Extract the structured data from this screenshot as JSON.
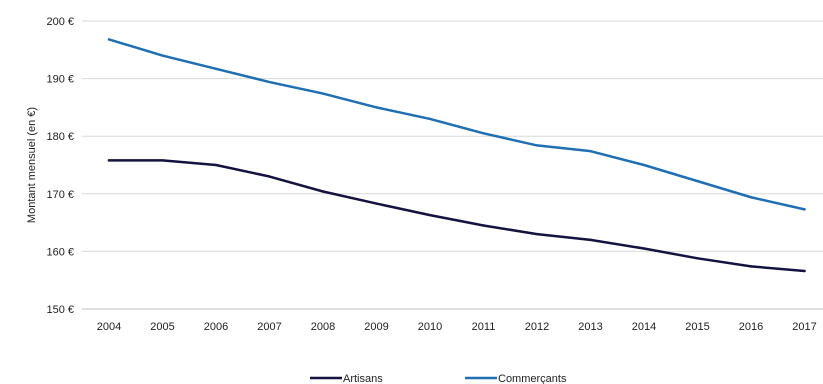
{
  "chart_data": {
    "type": "line",
    "x": [
      "2004",
      "2005",
      "2006",
      "2007",
      "2008",
      "2009",
      "2010",
      "2011",
      "2012",
      "2013",
      "2014",
      "2015",
      "2016",
      "2017"
    ],
    "ylabel": "Montant mensuel (en €)",
    "ylim": [
      150,
      200
    ],
    "yticks": [
      150,
      160,
      170,
      180,
      190,
      200
    ],
    "ytick_labels": [
      "150 €",
      "160 €",
      "170 €",
      "180 €",
      "190 €",
      "200 €"
    ],
    "grid": true,
    "legend_position": "bottom",
    "series": [
      {
        "name": "Artisans",
        "color": "#14123f",
        "values": [
          175.8,
          175.8,
          175.0,
          173.0,
          170.4,
          168.3,
          166.3,
          164.5,
          163.0,
          162.0,
          160.5,
          158.8,
          157.4,
          156.6
        ]
      },
      {
        "name": "Commerçants",
        "color": "#1f6fb2",
        "values": [
          196.8,
          194.0,
          191.7,
          189.4,
          187.4,
          185.0,
          183.0,
          180.5,
          178.4,
          177.4,
          175.0,
          172.2,
          169.4,
          167.3
        ]
      }
    ]
  }
}
